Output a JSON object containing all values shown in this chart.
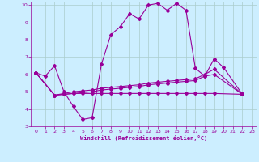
{
  "background_color": "#cceeff",
  "grid_color": "#aacccc",
  "line_color": "#990099",
  "xlabel": "Windchill (Refroidissement éolien,°C)",
  "xlim": [
    -0.5,
    23.5
  ],
  "ylim": [
    3,
    10.2
  ],
  "xticks": [
    0,
    1,
    2,
    3,
    4,
    5,
    6,
    7,
    8,
    9,
    10,
    11,
    12,
    13,
    14,
    15,
    16,
    17,
    18,
    19,
    20,
    21,
    22,
    23
  ],
  "yticks": [
    3,
    4,
    5,
    6,
    7,
    8,
    9,
    10
  ],
  "x_main": [
    0,
    1,
    2,
    3,
    4,
    5,
    6,
    7,
    8,
    9,
    10,
    11,
    12,
    13,
    14,
    15,
    16,
    17,
    18,
    19,
    20,
    22
  ],
  "y_main": [
    6.1,
    5.9,
    6.5,
    5.0,
    4.15,
    3.4,
    3.5,
    6.6,
    8.3,
    8.75,
    9.5,
    9.2,
    10.0,
    10.1,
    9.7,
    10.1,
    9.7,
    6.35,
    5.9,
    6.9,
    6.4,
    4.85
  ],
  "x_line1": [
    0,
    2,
    3,
    4,
    5,
    6,
    7,
    8,
    9,
    10,
    11,
    12,
    13,
    14,
    15,
    16,
    17,
    18,
    19,
    22
  ],
  "y_line1": [
    6.1,
    4.8,
    4.85,
    4.9,
    4.9,
    4.9,
    4.9,
    4.9,
    4.9,
    4.9,
    4.9,
    4.9,
    4.9,
    4.9,
    4.9,
    4.9,
    4.9,
    4.9,
    4.9,
    4.85
  ],
  "x_line2": [
    0,
    2,
    3,
    4,
    5,
    6,
    7,
    8,
    9,
    10,
    11,
    12,
    13,
    14,
    15,
    16,
    17,
    18,
    19,
    22
  ],
  "y_line2": [
    6.1,
    4.8,
    4.85,
    4.9,
    4.95,
    5.0,
    5.1,
    5.15,
    5.2,
    5.25,
    5.3,
    5.4,
    5.45,
    5.5,
    5.55,
    5.6,
    5.65,
    5.9,
    6.0,
    4.85
  ],
  "x_line3": [
    0,
    2,
    3,
    4,
    5,
    6,
    7,
    8,
    9,
    10,
    11,
    12,
    13,
    14,
    15,
    16,
    17,
    18,
    19,
    22
  ],
  "y_line3": [
    6.1,
    4.8,
    4.9,
    5.0,
    5.05,
    5.1,
    5.2,
    5.25,
    5.3,
    5.35,
    5.4,
    5.5,
    5.55,
    5.6,
    5.65,
    5.7,
    5.75,
    6.0,
    6.3,
    4.85
  ]
}
